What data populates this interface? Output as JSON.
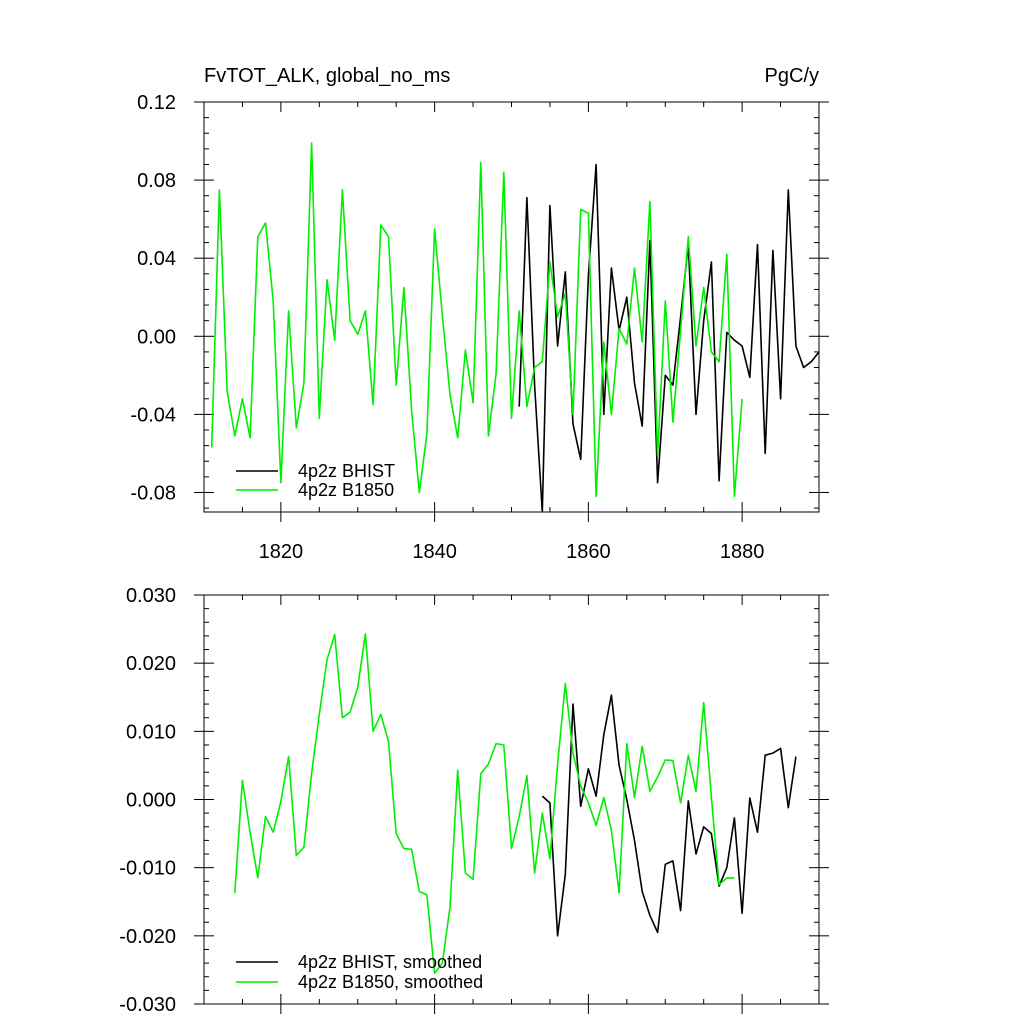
{
  "chart_data": [
    {
      "type": "line",
      "title_left": "FvTOT_ALK, global_no_ms",
      "title_right": "PgC/y",
      "xlabel": "",
      "ylabel": "",
      "xlim": [
        1810,
        1890
      ],
      "ylim": [
        -0.09,
        0.12
      ],
      "xticks": [
        1820,
        1840,
        1860,
        1880
      ],
      "xtick_labels": [
        "1820",
        "1840",
        "1860",
        "1880"
      ],
      "yticks": [
        -0.08,
        -0.04,
        0.0,
        0.04,
        0.08,
        0.12
      ],
      "ytick_labels": [
        "-0.08",
        "-0.04",
        "0.00",
        "0.04",
        "0.08",
        "0.12"
      ],
      "grid": false,
      "legend_position": "bottom-left",
      "series": [
        {
          "name": "4p2z BHIST",
          "color": "#000000",
          "x": [
            1851,
            1852,
            1853,
            1854,
            1855,
            1856,
            1857,
            1858,
            1859,
            1860,
            1861,
            1862,
            1863,
            1864,
            1865,
            1866,
            1867,
            1868,
            1869,
            1870,
            1871,
            1872,
            1873,
            1874,
            1875,
            1876,
            1877,
            1878,
            1879,
            1880,
            1881,
            1882,
            1883,
            1884,
            1885,
            1886,
            1887,
            1888,
            1889,
            1890
          ],
          "y": [
            -0.036,
            0.071,
            -0.025,
            -0.09,
            0.067,
            -0.005,
            0.033,
            -0.045,
            -0.063,
            0.031,
            0.088,
            -0.04,
            0.035,
            0.003,
            0.02,
            -0.024,
            -0.046,
            0.049,
            -0.075,
            -0.02,
            -0.025,
            0.01,
            0.047,
            -0.04,
            0.008,
            0.038,
            -0.074,
            0.002,
            -0.002,
            -0.005,
            -0.021,
            0.047,
            -0.06,
            0.044,
            -0.032,
            0.075,
            -0.005,
            -0.016,
            -0.013,
            -0.008
          ]
        },
        {
          "name": "4p2z B1850",
          "color": "#00ee00",
          "x": [
            1811,
            1812,
            1813,
            1814,
            1815,
            1816,
            1817,
            1818,
            1819,
            1820,
            1821,
            1822,
            1823,
            1824,
            1825,
            1826,
            1827,
            1828,
            1829,
            1830,
            1831,
            1832,
            1833,
            1834,
            1835,
            1836,
            1837,
            1838,
            1839,
            1840,
            1841,
            1842,
            1843,
            1844,
            1845,
            1846,
            1847,
            1848,
            1849,
            1850,
            1851,
            1852,
            1853,
            1854,
            1855,
            1856,
            1857,
            1858,
            1859,
            1860,
            1861,
            1862,
            1863,
            1864,
            1865,
            1866,
            1867,
            1868,
            1869,
            1870,
            1871,
            1872,
            1873,
            1874,
            1875,
            1876,
            1877,
            1878,
            1879,
            1880
          ],
          "y": [
            -0.057,
            0.075,
            -0.028,
            -0.051,
            -0.032,
            -0.052,
            0.051,
            0.058,
            0.018,
            -0.075,
            0.013,
            -0.047,
            -0.024,
            0.099,
            -0.042,
            0.029,
            -0.002,
            0.075,
            0.008,
            0.001,
            0.013,
            -0.035,
            0.057,
            0.051,
            -0.025,
            0.025,
            -0.038,
            -0.08,
            -0.05,
            0.055,
            0.011,
            -0.03,
            -0.052,
            -0.007,
            -0.034,
            0.089,
            -0.051,
            -0.019,
            0.084,
            -0.042,
            0.013,
            -0.036,
            -0.016,
            -0.013,
            0.038,
            0.01,
            0.022,
            -0.04,
            0.065,
            0.063,
            -0.082,
            -0.003,
            -0.04,
            0.004,
            -0.004,
            0.035,
            -0.003,
            0.069,
            -0.061,
            0.018,
            -0.044,
            0.003,
            0.051,
            -0.005,
            0.025,
            -0.008,
            -0.013,
            0.042,
            -0.082,
            -0.032
          ]
        }
      ]
    },
    {
      "type": "line",
      "title_left": "",
      "title_right": "",
      "xlabel": "",
      "ylabel": "",
      "xlim": [
        1810,
        1890
      ],
      "ylim": [
        -0.03,
        0.03
      ],
      "xticks": [
        1820,
        1840,
        1860,
        1880
      ],
      "xtick_labels": [],
      "yticks": [
        -0.03,
        -0.02,
        -0.01,
        0.0,
        0.01,
        0.02,
        0.03
      ],
      "ytick_labels": [
        "-0.030",
        "-0.020",
        "-0.010",
        "0.000",
        "0.010",
        "0.020",
        "0.030"
      ],
      "grid": false,
      "legend_position": "bottom-left",
      "series": [
        {
          "name": "4p2z BHIST, smoothed",
          "color": "#000000",
          "x": [
            1854,
            1855,
            1856,
            1857,
            1858,
            1859,
            1860,
            1861,
            1862,
            1863,
            1864,
            1865,
            1866,
            1867,
            1868,
            1869,
            1870,
            1871,
            1872,
            1873,
            1874,
            1875,
            1876,
            1877,
            1878,
            1879,
            1880,
            1881,
            1882,
            1883,
            1884,
            1885,
            1886,
            1887
          ],
          "y": [
            0.0005,
            -0.0005,
            -0.02,
            -0.011,
            0.014,
            -0.001,
            0.0045,
            0.0005,
            0.0095,
            0.0153,
            0.005,
            0.0,
            -0.006,
            -0.0135,
            -0.017,
            -0.0195,
            -0.0095,
            -0.009,
            -0.0163,
            -0.0002,
            -0.008,
            -0.004,
            -0.005,
            -0.0127,
            -0.01,
            -0.0027,
            -0.0167,
            0.0002,
            -0.0048,
            0.0065,
            0.0068,
            0.0075,
            -0.0012,
            0.0063
          ]
        },
        {
          "name": "4p2z B1850, smoothed",
          "color": "#00ee00",
          "x": [
            1814,
            1815,
            1816,
            1817,
            1818,
            1819,
            1820,
            1821,
            1822,
            1823,
            1824,
            1825,
            1826,
            1827,
            1828,
            1829,
            1830,
            1831,
            1832,
            1833,
            1834,
            1835,
            1836,
            1837,
            1838,
            1839,
            1840,
            1841,
            1842,
            1843,
            1844,
            1845,
            1846,
            1847,
            1848,
            1849,
            1850,
            1851,
            1852,
            1853,
            1854,
            1855,
            1856,
            1857,
            1858,
            1859,
            1860,
            1861,
            1862,
            1863,
            1864,
            1865,
            1866,
            1867,
            1868,
            1869,
            1870,
            1871,
            1872,
            1873,
            1874,
            1875,
            1876,
            1877,
            1878,
            1879
          ],
          "y": [
            -0.0137,
            0.0028,
            -0.0048,
            -0.0115,
            -0.0025,
            -0.0048,
            -0.0003,
            0.0063,
            -0.0082,
            -0.007,
            0.0038,
            0.0125,
            0.0205,
            0.0242,
            0.012,
            0.0128,
            0.0165,
            0.0243,
            0.01,
            0.0125,
            0.0085,
            -0.005,
            -0.0072,
            -0.0073,
            -0.0135,
            -0.014,
            -0.0255,
            -0.024,
            -0.0158,
            0.0043,
            -0.0108,
            -0.0117,
            0.0038,
            0.0052,
            0.0082,
            0.008,
            -0.0072,
            -0.0025,
            0.0035,
            -0.0108,
            -0.002,
            -0.0087,
            0.0052,
            0.017,
            0.0068,
            0.002,
            -0.0005,
            -0.0038,
            0.0003,
            -0.0045,
            -0.0137,
            0.0082,
            0.0003,
            0.0078,
            0.0012,
            0.0033,
            0.0058,
            0.0057,
            -0.0005,
            0.0065,
            0.0012,
            0.0142,
            0.0003,
            -0.0125,
            -0.0115,
            -0.0115
          ]
        }
      ]
    }
  ]
}
